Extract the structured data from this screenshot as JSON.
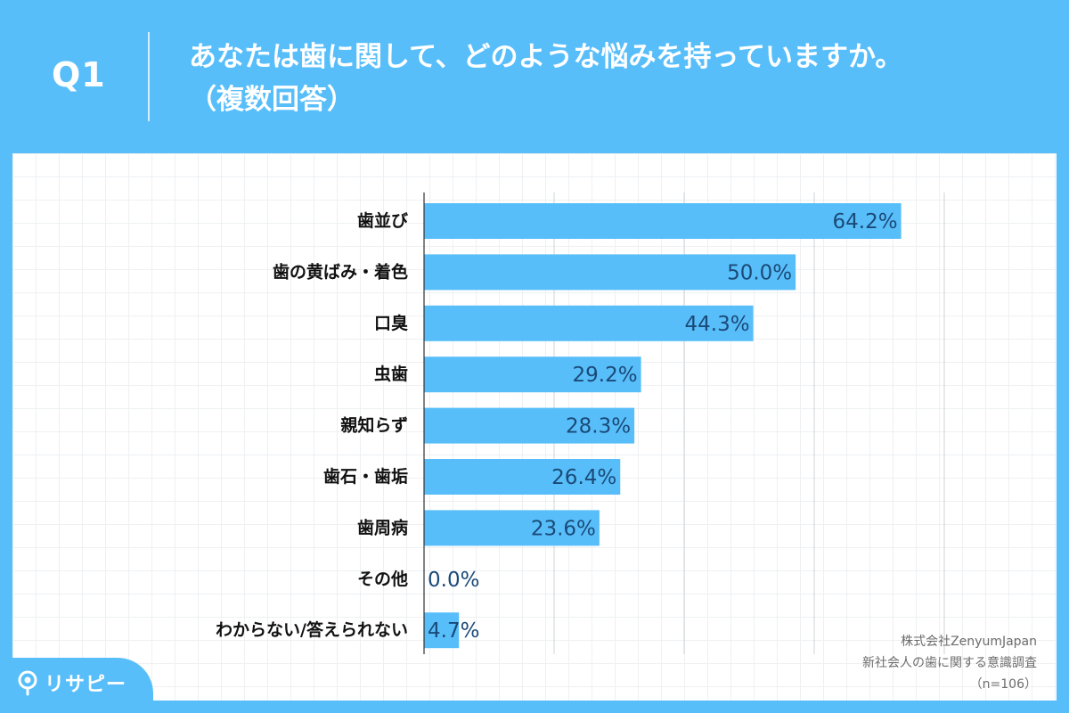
{
  "question": {
    "number": "Q1",
    "title_line1": "あなたは歯に関して、どのような悩みを持っていますか。",
    "title_line2": "（複数回答）"
  },
  "chart_data": {
    "type": "bar",
    "orientation": "horizontal",
    "categories": [
      "歯並び",
      "歯の黄ばみ・着色",
      "口臭",
      "虫歯",
      "親知らず",
      "歯石・歯垢",
      "歯周病",
      "その他",
      "わからない/答えられない"
    ],
    "values": [
      64.2,
      50.0,
      44.3,
      29.2,
      28.3,
      26.4,
      23.6,
      0.0,
      4.7
    ],
    "value_labels": [
      "64.2%",
      "50.0%",
      "44.3%",
      "29.2%",
      "28.3%",
      "26.4%",
      "23.6%",
      "0.0%",
      "4.7%"
    ],
    "unit": "%",
    "xlim": [
      0,
      70
    ],
    "grid_step": 17.5,
    "bar_color": "#58BEFA",
    "grid": true
  },
  "footnote": {
    "company": "株式会社ZenyumJapan",
    "survey": "新社会人の歯に関する意識調査",
    "sample": "（n=106）"
  },
  "logo": {
    "text": "リサピー"
  },
  "colors": {
    "background": "#58BEFA",
    "panel": "#ffffff",
    "value_text": "#1a4a78"
  }
}
